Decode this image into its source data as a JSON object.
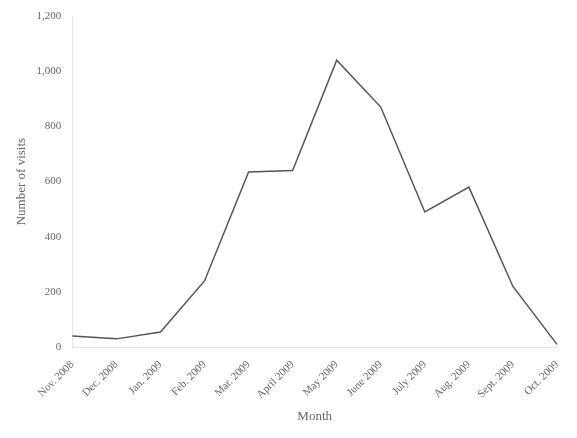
{
  "chart_data": {
    "type": "line",
    "xlabel": "Month",
    "ylabel": "Number of visits",
    "categories": [
      "Nov. 2008",
      "Dec. 2008",
      "Jan. 2009",
      "Feb. 2009",
      "Mar. 2009",
      "April 2009",
      "May 2009",
      "June 2009",
      "July 2009",
      "Aug. 2009",
      "Sept. 2009",
      "Oct. 2009"
    ],
    "values": [
      40,
      30,
      55,
      240,
      635,
      640,
      1040,
      870,
      490,
      580,
      220,
      10
    ],
    "color": "#555555",
    "ylim": [
      0,
      1200
    ],
    "yticks": [
      0,
      200,
      400,
      600,
      800,
      {
        "value": 1000,
        "label": "1,000"
      },
      {
        "value": 1200,
        "label": "1,200"
      }
    ],
    "grid": false
  }
}
